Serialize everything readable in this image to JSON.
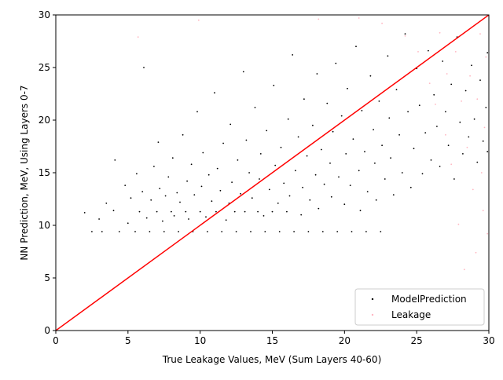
{
  "chart_data": {
    "type": "scatter",
    "title": "",
    "xlabel": "True Leakage Values, MeV (Sum Layers 40-60)",
    "ylabel": "NN Prediction, MeV, Using Layers 0-7",
    "xlim": [
      0,
      30
    ],
    "ylim": [
      0,
      30
    ],
    "xticks": [
      "0",
      "5",
      "10",
      "15",
      "20",
      "25",
      "30"
    ],
    "yticks": [
      "0",
      "5",
      "10",
      "15",
      "20",
      "25",
      "30"
    ],
    "grid": false,
    "legend_position": "lower-right",
    "colors": {
      "model": "#000000",
      "leakage": "#ffb6c1",
      "diagonal": "#ff0000"
    },
    "diagonal": {
      "x": [
        0,
        30
      ],
      "y": [
        0,
        30
      ]
    },
    "series": [
      {
        "name": "ModelPrediction",
        "points": [
          [
            2.0,
            11.2
          ],
          [
            2.5,
            9.4
          ],
          [
            3.0,
            10.6
          ],
          [
            3.2,
            9.4
          ],
          [
            3.5,
            12.1
          ],
          [
            4.0,
            11.4
          ],
          [
            4.1,
            16.2
          ],
          [
            4.4,
            9.4
          ],
          [
            4.8,
            13.8
          ],
          [
            5.0,
            10.2
          ],
          [
            5.2,
            12.6
          ],
          [
            5.5,
            9.4
          ],
          [
            5.6,
            14.9
          ],
          [
            5.8,
            11.3
          ],
          [
            6.0,
            13.2
          ],
          [
            6.1,
            25.0
          ],
          [
            6.3,
            10.7
          ],
          [
            6.5,
            9.4
          ],
          [
            6.6,
            12.4
          ],
          [
            6.8,
            15.6
          ],
          [
            7.0,
            11.3
          ],
          [
            7.1,
            17.9
          ],
          [
            7.2,
            13.5
          ],
          [
            7.4,
            10.4
          ],
          [
            7.5,
            9.4
          ],
          [
            7.6,
            12.8
          ],
          [
            7.8,
            14.6
          ],
          [
            8.0,
            11.3
          ],
          [
            8.1,
            16.4
          ],
          [
            8.2,
            10.9
          ],
          [
            8.4,
            13.1
          ],
          [
            8.5,
            9.4
          ],
          [
            8.6,
            12.2
          ],
          [
            8.8,
            18.6
          ],
          [
            9.0,
            11.3
          ],
          [
            9.1,
            14.2
          ],
          [
            9.2,
            10.6
          ],
          [
            9.4,
            15.8
          ],
          [
            9.5,
            9.4
          ],
          [
            9.6,
            12.9
          ],
          [
            9.8,
            20.8
          ],
          [
            10.0,
            11.3
          ],
          [
            10.1,
            13.7
          ],
          [
            10.2,
            16.9
          ],
          [
            10.4,
            10.8
          ],
          [
            10.5,
            9.4
          ],
          [
            10.6,
            14.8
          ],
          [
            10.8,
            12.3
          ],
          [
            11.0,
            22.6
          ],
          [
            11.1,
            11.3
          ],
          [
            11.2,
            15.4
          ],
          [
            11.4,
            13.3
          ],
          [
            11.5,
            9.4
          ],
          [
            11.6,
            17.8
          ],
          [
            11.8,
            10.5
          ],
          [
            12.0,
            12.1
          ],
          [
            12.1,
            19.6
          ],
          [
            12.2,
            14.1
          ],
          [
            12.4,
            11.3
          ],
          [
            12.5,
            9.4
          ],
          [
            12.6,
            16.2
          ],
          [
            12.8,
            13.0
          ],
          [
            13.0,
            24.6
          ],
          [
            13.1,
            11.3
          ],
          [
            13.2,
            18.1
          ],
          [
            13.4,
            15.0
          ],
          [
            13.5,
            9.4
          ],
          [
            13.6,
            12.6
          ],
          [
            13.8,
            21.2
          ],
          [
            14.0,
            11.3
          ],
          [
            14.1,
            14.4
          ],
          [
            14.2,
            16.8
          ],
          [
            14.4,
            10.9
          ],
          [
            14.5,
            9.4
          ],
          [
            14.6,
            19.0
          ],
          [
            14.8,
            13.4
          ],
          [
            15.0,
            11.3
          ],
          [
            15.1,
            23.3
          ],
          [
            15.2,
            15.7
          ],
          [
            15.4,
            12.1
          ],
          [
            15.5,
            9.4
          ],
          [
            15.6,
            17.4
          ],
          [
            15.8,
            14.0
          ],
          [
            16.0,
            11.3
          ],
          [
            16.1,
            20.1
          ],
          [
            16.2,
            12.8
          ],
          [
            16.4,
            26.2
          ],
          [
            16.5,
            9.4
          ],
          [
            16.6,
            15.2
          ],
          [
            16.8,
            18.4
          ],
          [
            17.0,
            11.0
          ],
          [
            17.1,
            13.6
          ],
          [
            17.2,
            22.0
          ],
          [
            17.4,
            16.6
          ],
          [
            17.5,
            9.4
          ],
          [
            17.6,
            12.4
          ],
          [
            17.8,
            19.5
          ],
          [
            18.0,
            14.8
          ],
          [
            18.1,
            24.4
          ],
          [
            18.2,
            11.6
          ],
          [
            18.4,
            17.2
          ],
          [
            18.5,
            9.4
          ],
          [
            18.6,
            13.9
          ],
          [
            18.8,
            21.6
          ],
          [
            19.0,
            15.9
          ],
          [
            19.1,
            12.7
          ],
          [
            19.2,
            18.9
          ],
          [
            19.4,
            25.4
          ],
          [
            19.5,
            9.4
          ],
          [
            19.6,
            14.6
          ],
          [
            19.8,
            20.4
          ],
          [
            20.0,
            12.0
          ],
          [
            20.1,
            16.8
          ],
          [
            20.2,
            23.0
          ],
          [
            20.4,
            13.8
          ],
          [
            20.5,
            9.4
          ],
          [
            20.6,
            18.2
          ],
          [
            20.8,
            27.0
          ],
          [
            21.0,
            15.2
          ],
          [
            21.1,
            11.4
          ],
          [
            21.2,
            20.9
          ],
          [
            21.4,
            17.0
          ],
          [
            21.5,
            9.4
          ],
          [
            21.6,
            13.2
          ],
          [
            21.8,
            24.2
          ],
          [
            22.0,
            19.1
          ],
          [
            22.1,
            15.9
          ],
          [
            22.2,
            12.4
          ],
          [
            22.4,
            21.8
          ],
          [
            22.5,
            9.4
          ],
          [
            22.6,
            17.6
          ],
          [
            22.8,
            14.4
          ],
          [
            23.0,
            26.1
          ],
          [
            23.1,
            20.2
          ],
          [
            23.2,
            16.4
          ],
          [
            23.4,
            12.9
          ],
          [
            23.6,
            22.9
          ],
          [
            23.8,
            18.6
          ],
          [
            24.0,
            15.0
          ],
          [
            24.2,
            28.2
          ],
          [
            24.4,
            20.8
          ],
          [
            24.6,
            13.6
          ],
          [
            24.8,
            17.3
          ],
          [
            25.0,
            24.9
          ],
          [
            25.2,
            21.4
          ],
          [
            25.4,
            14.9
          ],
          [
            25.6,
            18.8
          ],
          [
            25.8,
            26.6
          ],
          [
            26.0,
            16.2
          ],
          [
            26.2,
            22.4
          ],
          [
            26.4,
            19.4
          ],
          [
            26.6,
            15.6
          ],
          [
            26.8,
            25.6
          ],
          [
            27.0,
            20.8
          ],
          [
            27.2,
            17.6
          ],
          [
            27.4,
            23.4
          ],
          [
            27.6,
            14.4
          ],
          [
            27.8,
            27.9
          ],
          [
            28.0,
            19.8
          ],
          [
            28.2,
            16.8
          ],
          [
            28.4,
            22.8
          ],
          [
            28.6,
            18.4
          ],
          [
            28.8,
            25.2
          ],
          [
            29.0,
            20.1
          ],
          [
            29.2,
            16.0
          ],
          [
            29.4,
            23.8
          ],
          [
            29.6,
            18.0
          ],
          [
            29.8,
            21.2
          ],
          [
            29.9,
            17.0
          ],
          [
            29.9,
            26.4
          ]
        ]
      },
      {
        "name": "Leakage",
        "points": [
          [
            5.7,
            27.9
          ],
          [
            9.9,
            29.5
          ],
          [
            18.2,
            29.6
          ],
          [
            21.0,
            29.7
          ],
          [
            22.6,
            29.2
          ],
          [
            24.2,
            28.0
          ],
          [
            25.1,
            26.5
          ],
          [
            25.9,
            23.5
          ],
          [
            26.3,
            21.5
          ],
          [
            26.6,
            28.3
          ],
          [
            27.0,
            18.6
          ],
          [
            27.1,
            24.4
          ],
          [
            27.4,
            15.8
          ],
          [
            27.7,
            26.5
          ],
          [
            27.9,
            10.1
          ],
          [
            28.1,
            21.8
          ],
          [
            28.3,
            5.8
          ],
          [
            28.5,
            17.4
          ],
          [
            28.7,
            24.2
          ],
          [
            28.9,
            13.4
          ],
          [
            29.1,
            7.4
          ],
          [
            29.2,
            22.0
          ],
          [
            29.4,
            28.2
          ],
          [
            29.5,
            15.0
          ],
          [
            29.6,
            11.4
          ],
          [
            29.7,
            19.3
          ],
          [
            29.8,
            26.0
          ],
          [
            29.9,
            9.2
          ]
        ]
      }
    ]
  }
}
